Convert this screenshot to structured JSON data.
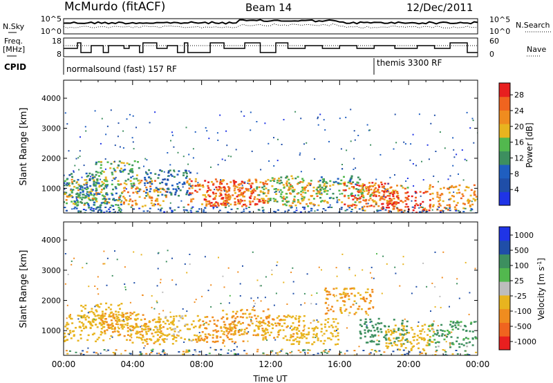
{
  "header": {
    "station": "McMurdo (fitACF)",
    "beam": "Beam 14",
    "date": "12/Dec/2011"
  },
  "left_labels": {
    "nsky": "N.Sky",
    "freq_line1": "Freq.",
    "freq_line2": "[MHz]",
    "cpid": "CPID"
  },
  "right_labels": {
    "nsearch": "N.Search",
    "nave": "Nave"
  },
  "noise_panel": {
    "left_ticks": [
      "10^5",
      "10^0"
    ],
    "right_ticks": [
      "10^5",
      "10^0"
    ]
  },
  "freq_panel": {
    "left_ticks": [
      "18",
      "8"
    ],
    "right_ticks": [
      "60",
      "0"
    ]
  },
  "cpid_panel": {
    "segments": [
      {
        "label": "normalsound (fast) 157 RF",
        "start_hour": 0
      },
      {
        "label": "themis 3300 RF",
        "start_hour": 18.1
      }
    ]
  },
  "colors": {
    "power_scale": [
      "#1f34e6",
      "#1f4ea8",
      "#1f5ec0",
      "#3d8f5f",
      "#52b84e",
      "#e8b41f",
      "#f08c1f",
      "#f0641f",
      "#e81f1f"
    ],
    "velocity_scale": [
      "#1f34e6",
      "#1f4ea8",
      "#3d8f5f",
      "#52b84e",
      "#bdbdbd",
      "#e8b41f",
      "#f08c1f",
      "#f0641f",
      "#e81f1f"
    ],
    "ground_scatter": "#9e9e9e"
  },
  "chart_data": [
    {
      "type": "heatmap",
      "name": "power",
      "ylabel": "Slant Range [km]",
      "ylim": [
        180,
        4600
      ],
      "xlim": [
        0,
        24
      ],
      "yticks": [
        "1000",
        "2000",
        "3000",
        "4000"
      ],
      "colorbar_label": "Power [dB]",
      "colorbar_ticks": [
        "4",
        "8",
        "12",
        "16",
        "20",
        "24",
        "28"
      ],
      "colorbar_range": [
        0,
        31
      ],
      "series": [
        {
          "hour": 0.5,
          "range": 1100,
          "value": 10
        },
        {
          "hour": 1.2,
          "range": 900,
          "value": 18
        },
        {
          "hour": 2.0,
          "range": 600,
          "value": 12
        },
        {
          "hour": 3.0,
          "range": 1500,
          "value": 14
        },
        {
          "hour": 4.5,
          "range": 850,
          "value": 22
        },
        {
          "hour": 6.0,
          "range": 1200,
          "value": 9
        },
        {
          "hour": 8.5,
          "range": 900,
          "value": 24
        },
        {
          "hour": 9.5,
          "range": 850,
          "value": 27
        },
        {
          "hour": 10.5,
          "range": 900,
          "value": 24
        },
        {
          "hour": 12.5,
          "range": 1000,
          "value": 16
        },
        {
          "hour": 14.0,
          "range": 850,
          "value": 20
        },
        {
          "hour": 16.0,
          "range": 1000,
          "value": 14
        },
        {
          "hour": 17.5,
          "range": 800,
          "value": 26
        },
        {
          "hour": 18.5,
          "range": 700,
          "value": 22
        },
        {
          "hour": 19.8,
          "range": 500,
          "value": 29
        },
        {
          "hour": 22.5,
          "range": 700,
          "value": 22
        }
      ]
    },
    {
      "type": "heatmap",
      "name": "velocity",
      "ylabel": "Slant Range [km]",
      "xlabel": "Time UT",
      "ylim": [
        180,
        4600
      ],
      "xlim": [
        0,
        24
      ],
      "yticks": [
        "1000",
        "2000",
        "3000",
        "4000"
      ],
      "xticks": [
        "00:00",
        "04:00",
        "08:00",
        "12:00",
        "16:00",
        "20:00",
        "00:00"
      ],
      "colorbar_label": "Velocity [m s",
      "colorbar_label_sup": "-1",
      "colorbar_label_end": "]",
      "colorbar_ticks": [
        "1000",
        "500",
        "100",
        "25",
        "-25",
        "-100",
        "-500",
        "-1000"
      ],
      "series": [
        {
          "hour": 1.0,
          "range": 1100,
          "value": -200
        },
        {
          "hour": 2.2,
          "range": 1500,
          "value": -150
        },
        {
          "hour": 3.5,
          "range": 1200,
          "value": -300
        },
        {
          "hour": 5.0,
          "range": 1000,
          "value": -250
        },
        {
          "hour": 6.5,
          "range": 1100,
          "value": -120
        },
        {
          "hour": 9.0,
          "range": 1050,
          "value": -350
        },
        {
          "hour": 10.5,
          "range": 1300,
          "value": -300
        },
        {
          "hour": 12.5,
          "range": 1100,
          "value": -250
        },
        {
          "hour": 14.5,
          "range": 1000,
          "value": -200
        },
        {
          "hour": 16.5,
          "range": 2000,
          "value": -300
        },
        {
          "hour": 18.5,
          "range": 1000,
          "value": 150
        },
        {
          "hour": 20.0,
          "range": 800,
          "value": -150
        },
        {
          "hour": 22.5,
          "range": 900,
          "value": 80
        }
      ]
    }
  ]
}
